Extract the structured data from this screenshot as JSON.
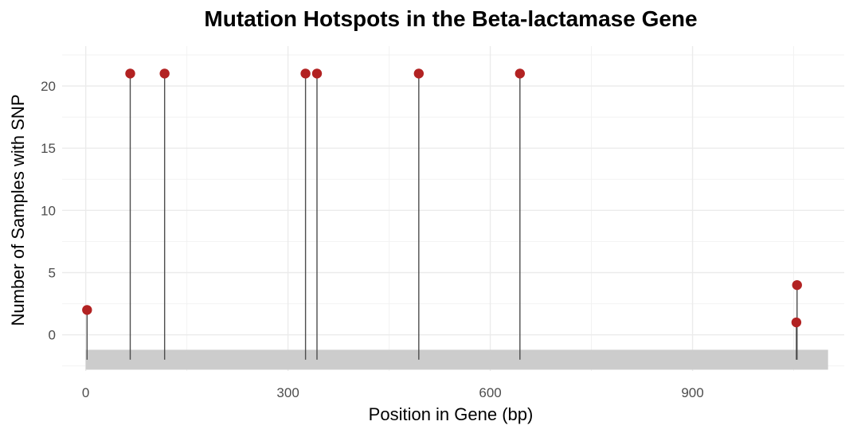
{
  "chart_data": {
    "type": "scatter",
    "subtype": "lollipop",
    "title": "Mutation Hotspots in the Beta-lactamase Gene",
    "xlabel": "Position in Gene (bp)",
    "ylabel": "Number of Samples with SNP",
    "xlim": [
      -35,
      1125
    ],
    "ylim": [
      -2.9,
      23.2
    ],
    "x_ticks": [
      0,
      300,
      600,
      900
    ],
    "x_tick_labels": [
      "0",
      "300",
      "600",
      "900"
    ],
    "y_ticks": [
      0,
      5,
      10,
      15,
      20
    ],
    "y_tick_labels": [
      "0",
      "5",
      "10",
      "15",
      "20"
    ],
    "gene_region": {
      "start": 0,
      "end": 1101,
      "y_bottom": -2.8,
      "y_top": -1.2
    },
    "stem_base": -2.0,
    "points": [
      {
        "x": 2,
        "y": 2
      },
      {
        "x": 66,
        "y": 21
      },
      {
        "x": 117,
        "y": 21
      },
      {
        "x": 326,
        "y": 21
      },
      {
        "x": 343,
        "y": 21
      },
      {
        "x": 494,
        "y": 21
      },
      {
        "x": 644,
        "y": 21
      },
      {
        "x": 1054,
        "y": 1
      },
      {
        "x": 1055,
        "y": 4
      }
    ],
    "grid": true,
    "legend": "none",
    "colors": {
      "point": "#b22222",
      "stem": "#4d4d4d",
      "gene_bar": "#cccccc",
      "grid_major": "#ebebeb",
      "grid_minor": "#f2f2f2"
    }
  }
}
